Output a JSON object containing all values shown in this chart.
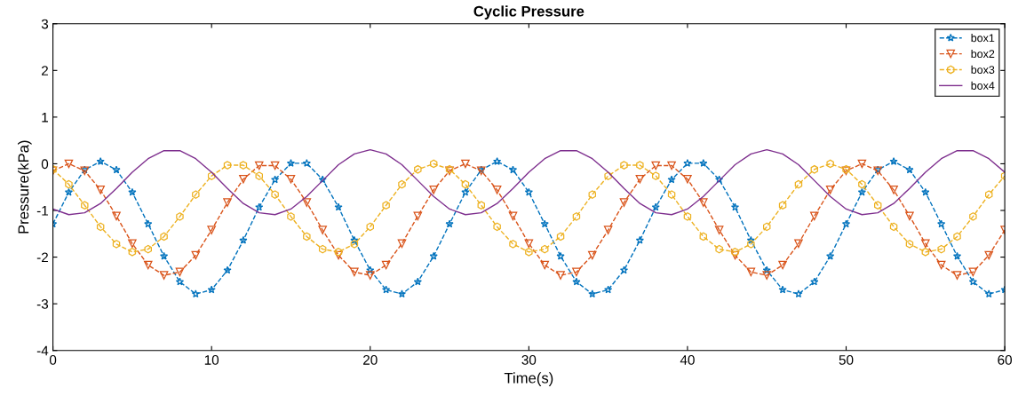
{
  "chart_data": {
    "type": "line",
    "title": "Cyclic Pressure",
    "xlabel": "Time(s)",
    "ylabel": "Pressure(kPa)",
    "x": [
      0,
      1,
      2,
      3,
      4,
      5,
      6,
      7,
      8,
      9,
      10,
      11,
      12,
      13,
      14,
      15,
      16,
      17,
      18,
      19,
      20,
      21,
      22,
      23,
      24,
      25,
      26,
      27,
      28,
      29,
      30,
      31,
      32,
      33,
      34,
      35,
      36,
      37,
      38,
      39,
      40,
      41,
      42,
      43,
      44,
      45,
      46,
      47,
      48,
      49,
      50,
      51,
      52,
      53,
      54,
      55,
      56,
      57,
      58,
      59,
      60
    ],
    "series": [
      {
        "name": "box1",
        "color": "#0072bd",
        "marker": "star",
        "line_style": "dashed",
        "values": [
          -1.29,
          -0.61,
          -0.13,
          0.05,
          -0.13,
          -0.61,
          -1.29,
          -1.98,
          -2.53,
          -2.79,
          -2.7,
          -2.28,
          -1.64,
          -0.93,
          -0.34,
          0.01,
          0.01,
          -0.34,
          -0.93,
          -1.64,
          -2.28,
          -2.7,
          -2.79,
          -2.53,
          -1.98,
          -1.29,
          -0.61,
          -0.13,
          0.05,
          -0.13,
          -0.61,
          -1.29,
          -1.98,
          -2.53,
          -2.79,
          -2.7,
          -2.28,
          -1.64,
          -0.93,
          -0.34,
          0.01,
          0.01,
          -0.34,
          -0.93,
          -1.64,
          -2.28,
          -2.7,
          -2.79,
          -2.53,
          -1.98,
          -1.29,
          -0.61,
          -0.13,
          0.05,
          -0.13,
          -0.61,
          -1.29,
          -1.98,
          -2.53,
          -2.79,
          -2.7
        ]
      },
      {
        "name": "box2",
        "color": "#d95319",
        "marker": "triangle",
        "line_style": "dashed",
        "values": [
          -0.15,
          0.0,
          -0.15,
          -0.56,
          -1.12,
          -1.71,
          -2.17,
          -2.39,
          -2.32,
          -1.96,
          -1.42,
          -0.83,
          -0.33,
          -0.04,
          -0.04,
          -0.33,
          -0.83,
          -1.42,
          -1.96,
          -2.32,
          -2.39,
          -2.17,
          -1.71,
          -1.12,
          -0.56,
          -0.15,
          0.0,
          -0.15,
          -0.56,
          -1.12,
          -1.71,
          -2.17,
          -2.39,
          -2.32,
          -1.96,
          -1.42,
          -0.83,
          -0.33,
          -0.04,
          -0.04,
          -0.33,
          -0.83,
          -1.42,
          -1.96,
          -2.32,
          -2.39,
          -2.17,
          -1.71,
          -1.12,
          -0.56,
          -0.15,
          0.0,
          -0.15,
          -0.56,
          -1.12,
          -1.71,
          -2.17,
          -2.39,
          -2.32,
          -1.96,
          -1.42
        ]
      },
      {
        "name": "box3",
        "color": "#edb120",
        "marker": "circle",
        "line_style": "dashed",
        "values": [
          -0.12,
          -0.44,
          -0.89,
          -1.35,
          -1.72,
          -1.89,
          -1.83,
          -1.56,
          -1.13,
          -0.66,
          -0.26,
          -0.03,
          -0.03,
          -0.26,
          -0.66,
          -1.13,
          -1.56,
          -1.83,
          -1.89,
          -1.72,
          -1.35,
          -0.89,
          -0.44,
          -0.12,
          0.0,
          -0.12,
          -0.44,
          -0.89,
          -1.35,
          -1.72,
          -1.89,
          -1.83,
          -1.56,
          -1.13,
          -0.66,
          -0.26,
          -0.03,
          -0.03,
          -0.26,
          -0.66,
          -1.13,
          -1.56,
          -1.83,
          -1.89,
          -1.72,
          -1.35,
          -0.89,
          -0.44,
          -0.12,
          0.0,
          -0.12,
          -0.44,
          -0.89,
          -1.35,
          -1.72,
          -1.89,
          -1.83,
          -1.56,
          -1.13,
          -0.66,
          -0.26
        ]
      },
      {
        "name": "box4",
        "color": "#7e2f8e",
        "marker": "none",
        "line_style": "solid",
        "values": [
          -0.97,
          -1.09,
          -1.05,
          -0.85,
          -0.53,
          -0.18,
          0.11,
          0.28,
          0.28,
          0.11,
          -0.18,
          -0.53,
          -0.85,
          -1.05,
          -1.09,
          -0.97,
          -0.7,
          -0.36,
          -0.02,
          0.21,
          0.3,
          0.21,
          -0.02,
          -0.36,
          -0.7,
          -0.97,
          -1.09,
          -1.05,
          -0.85,
          -0.53,
          -0.18,
          0.11,
          0.28,
          0.28,
          0.11,
          -0.18,
          -0.53,
          -0.85,
          -1.05,
          -1.09,
          -0.97,
          -0.7,
          -0.36,
          -0.02,
          0.21,
          0.3,
          0.21,
          -0.02,
          -0.36,
          -0.7,
          -0.97,
          -1.09,
          -1.05,
          -0.85,
          -0.53,
          -0.18,
          0.11,
          0.28,
          0.28,
          0.11,
          -0.18
        ]
      }
    ],
    "xlim": [
      0,
      60
    ],
    "xticks": [
      0,
      10,
      20,
      30,
      40,
      50,
      60
    ],
    "ylim": [
      -4,
      3
    ],
    "yticks": [
      -4,
      -3,
      -2,
      -1,
      0,
      1,
      2,
      3
    ],
    "grid": false,
    "legend": "top right"
  }
}
